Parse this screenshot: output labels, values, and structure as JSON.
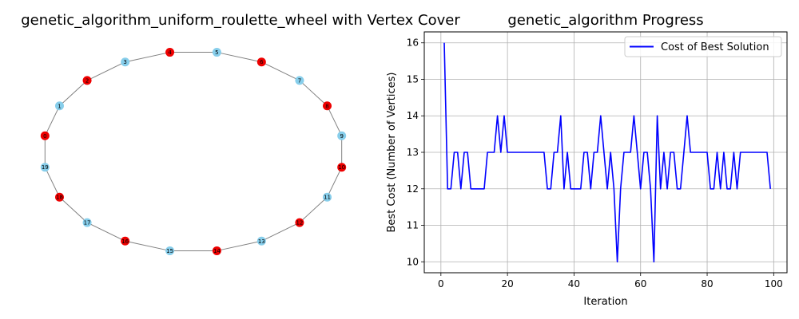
{
  "chart_data": [
    {
      "type": "graph",
      "title": "genetic_algorithm_uniform_roulette_wheel with Vertex Cover",
      "colors": {
        "in_cover": "#ee0000",
        "not_in_cover": "#87ceeb",
        "edge": "#808080"
      },
      "nodes": [
        {
          "id": "0",
          "cover": true
        },
        {
          "id": "1",
          "cover": false
        },
        {
          "id": "2",
          "cover": true
        },
        {
          "id": "3",
          "cover": false
        },
        {
          "id": "4",
          "cover": true
        },
        {
          "id": "5",
          "cover": false
        },
        {
          "id": "6",
          "cover": true
        },
        {
          "id": "7",
          "cover": false
        },
        {
          "id": "8",
          "cover": true
        },
        {
          "id": "9",
          "cover": false
        },
        {
          "id": "10",
          "cover": true
        },
        {
          "id": "11",
          "cover": false
        },
        {
          "id": "12",
          "cover": true
        },
        {
          "id": "13",
          "cover": false
        },
        {
          "id": "14",
          "cover": true
        },
        {
          "id": "15",
          "cover": false
        },
        {
          "id": "16",
          "cover": true
        },
        {
          "id": "17",
          "cover": false
        },
        {
          "id": "18",
          "cover": true
        },
        {
          "id": "19",
          "cover": false
        }
      ],
      "edges": [
        [
          0,
          1
        ],
        [
          1,
          2
        ],
        [
          2,
          3
        ],
        [
          3,
          4
        ],
        [
          4,
          5
        ],
        [
          5,
          6
        ],
        [
          6,
          7
        ],
        [
          7,
          8
        ],
        [
          8,
          9
        ],
        [
          9,
          10
        ],
        [
          10,
          11
        ],
        [
          11,
          12
        ],
        [
          12,
          13
        ],
        [
          13,
          14
        ],
        [
          14,
          15
        ],
        [
          15,
          16
        ],
        [
          16,
          17
        ],
        [
          17,
          18
        ],
        [
          18,
          19
        ],
        [
          19,
          0
        ]
      ]
    },
    {
      "type": "line",
      "title": "genetic_algorithm Progress",
      "xlabel": "Iteration",
      "ylabel": "Best Cost (Number of Vertices)",
      "xlim": [
        -5,
        104
      ],
      "ylim": [
        9.7,
        16.3
      ],
      "xticks": [
        0,
        20,
        40,
        60,
        80,
        100
      ],
      "yticks": [
        10,
        11,
        12,
        13,
        14,
        15,
        16
      ],
      "grid": true,
      "legend": "upper right",
      "series": [
        {
          "name": "Cost of Best Solution",
          "color": "#0000ff",
          "x": [
            1,
            2,
            3,
            4,
            5,
            6,
            7,
            8,
            9,
            10,
            11,
            12,
            13,
            14,
            15,
            16,
            17,
            18,
            19,
            20,
            21,
            22,
            23,
            24,
            25,
            26,
            27,
            28,
            29,
            30,
            31,
            32,
            33,
            34,
            35,
            36,
            37,
            38,
            39,
            40,
            41,
            42,
            43,
            44,
            45,
            46,
            47,
            48,
            49,
            50,
            51,
            52,
            53,
            54,
            55,
            56,
            57,
            58,
            59,
            60,
            61,
            62,
            63,
            64,
            65,
            66,
            67,
            68,
            69,
            70,
            71,
            72,
            73,
            74,
            75,
            76,
            77,
            78,
            79,
            80,
            81,
            82,
            83,
            84,
            85,
            86,
            87,
            88,
            89,
            90,
            91,
            92,
            93,
            94,
            95,
            96,
            97,
            98,
            99
          ],
          "y": [
            16,
            12,
            12,
            13,
            13,
            12,
            13,
            13,
            12,
            12,
            12,
            12,
            12,
            13,
            13,
            13,
            14,
            13,
            14,
            13,
            13,
            13,
            13,
            13,
            13,
            13,
            13,
            13,
            13,
            13,
            13,
            12,
            12,
            13,
            13,
            14,
            12,
            13,
            12,
            12,
            12,
            12,
            13,
            13,
            12,
            13,
            13,
            14,
            13,
            12,
            13,
            12,
            10,
            12,
            13,
            13,
            13,
            14,
            13,
            12,
            13,
            13,
            12,
            10,
            14,
            12,
            13,
            12,
            13,
            13,
            12,
            12,
            13,
            14,
            13,
            13,
            13,
            13,
            13,
            13,
            12,
            12,
            13,
            12,
            13,
            12,
            12,
            13,
            12,
            13,
            13,
            13,
            13,
            13,
            13,
            13,
            13,
            13,
            12
          ]
        }
      ]
    }
  ]
}
